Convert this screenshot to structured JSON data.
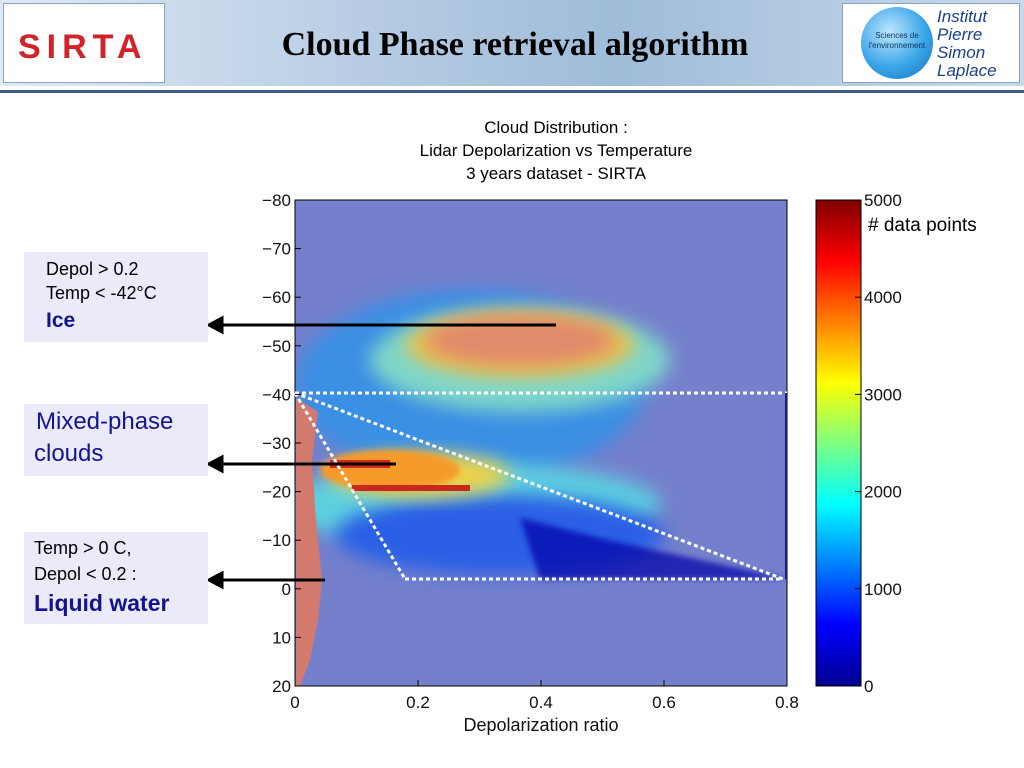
{
  "header": {
    "title": "Cloud Phase retrieval algorithm",
    "left_logo_text": "SIRTA",
    "right_logo": {
      "globe_text": "Sciences de l'environnement",
      "words": [
        "Institut",
        "Pierre",
        "Simon",
        "Laplace"
      ]
    }
  },
  "chart_title": [
    "Cloud Distribution :",
    "Lidar Depolarization vs Temperature",
    "3 years dataset - SIRTA"
  ],
  "annotations": {
    "ice": {
      "lines": [
        "Depol > 0.2",
        "Temp < -42°C"
      ],
      "bold": "Ice"
    },
    "mixed": {
      "lines": [
        "Mixed-phase",
        "clouds"
      ]
    },
    "liquid": {
      "lines": [
        "Temp > 0 C,",
        "Depol < 0.2 :"
      ],
      "bold": "Liquid water"
    }
  },
  "colorbar": {
    "label": "# data points",
    "ticks": [
      "5000",
      "4000",
      "3000",
      "2000",
      "1000",
      "0"
    ],
    "range": [
      0,
      5000
    ]
  },
  "colors": {
    "background_count": "#7480cc",
    "title_blue": "#14148c",
    "sirta_red": "#d2232a"
  },
  "chart_data": {
    "type": "heatmap",
    "title": "",
    "xlabel": "Depolarization ratio",
    "ylabel": "",
    "xlim": [
      0,
      0.8
    ],
    "ylim": [
      -80,
      20
    ],
    "y_axis_inverted": true,
    "x_ticks": [
      "0",
      "0.2",
      "0.4",
      "0.6",
      "0.8"
    ],
    "y_ticks": [
      "−80",
      "−70",
      "−60",
      "−50",
      "−40",
      "−30",
      "−20",
      "−10",
      "0",
      "10",
      "20"
    ],
    "colorbar_range": [
      0,
      5000
    ],
    "approx_regions": [
      {
        "region": "ice",
        "x": [
          0.18,
          0.68
        ],
        "y": [
          -64,
          -40
        ],
        "count": 3500
      },
      {
        "region": "mixed-phase high counts",
        "x": [
          0.04,
          0.3
        ],
        "y": [
          -33,
          -17
        ],
        "count": 4200
      },
      {
        "region": "liquid-like low counts",
        "x": [
          0.15,
          0.8
        ],
        "y": [
          -17,
          -1
        ],
        "count": 700
      },
      {
        "region": "low depolarization column",
        "x": [
          0.0,
          0.05
        ],
        "y": [
          -40,
          15
        ],
        "count": 3800
      }
    ],
    "boundaries": [
      {
        "name": "ice threshold",
        "x": [
          0.0,
          0.8
        ],
        "y": [
          -40,
          -40
        ]
      },
      {
        "name": "liquid threshold",
        "x": [
          0.18,
          0.8
        ],
        "y": [
          -2,
          -2
        ]
      },
      {
        "name": "mixed-phase upper",
        "x": [
          0.0,
          0.8
        ],
        "y": [
          -40,
          -2
        ]
      },
      {
        "name": "mixed-phase left",
        "x": [
          0.0,
          0.18
        ],
        "y": [
          -40,
          -2
        ]
      }
    ]
  }
}
